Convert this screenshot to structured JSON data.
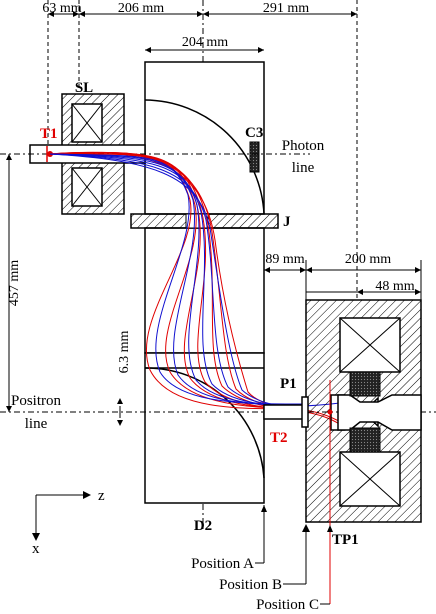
{
  "dimensions": {
    "d63": "63 mm",
    "d206": "206 mm",
    "d291": "291 mm",
    "d204": "204 mm",
    "d457": "457 mm",
    "d6_3": "6.3 mm",
    "d89": "89 mm",
    "d200": "200 mm",
    "d48": "48 mm"
  },
  "labels": {
    "sl": "SL",
    "c3": "C3",
    "t1": "T1",
    "photon_line_1": "Photon",
    "photon_line_2": "line",
    "j": "J",
    "p1": "P1",
    "t2": "T2",
    "positron_line_1": "Positron",
    "positron_line_2": "line",
    "d2": "D2",
    "tp1": "TP1",
    "z_axis": "z",
    "x_axis": "x"
  },
  "positions": {
    "a": "Position A",
    "b": "Position B",
    "c": "Position C"
  },
  "colors": {
    "red_traj": "#e00000",
    "blue_traj": "#1010d0",
    "hatch": "#000000",
    "coil": "#333333",
    "position_c_line": "#e00000"
  }
}
